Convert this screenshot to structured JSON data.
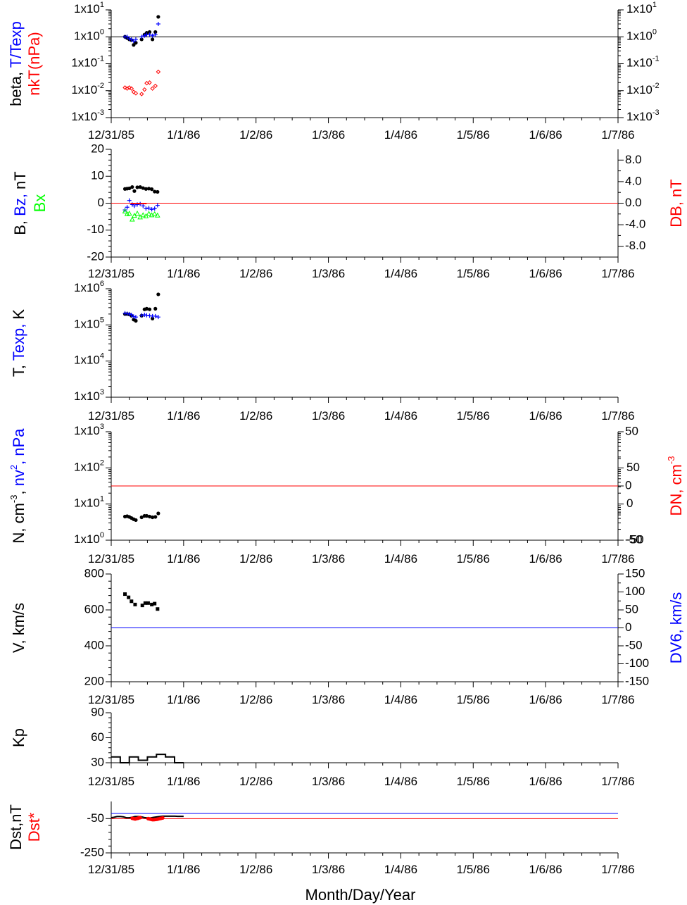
{
  "figure": {
    "x_tick_labels": [
      "12/31/85",
      "1/1/86",
      "1/2/86",
      "1/3/86",
      "1/4/86",
      "1/5/86",
      "1/6/86",
      "1/7/86"
    ],
    "x_axis_label": "Month/Day/Year",
    "colors": {
      "black": "#000000",
      "blue": "#0000ff",
      "red": "#ff0000",
      "green": "#00ff00"
    }
  },
  "chart_data": [
    {
      "id": "beta",
      "type": "scatter",
      "y_scale": "log",
      "ylim": [
        0.001,
        10
      ],
      "left_tick_labels": [
        {
          "base": "1x10",
          "exp": "-3"
        },
        {
          "base": "1x10",
          "exp": "-2"
        },
        {
          "base": "1x10",
          "exp": "-1"
        },
        {
          "base": "1x10",
          "exp": "0"
        },
        {
          "base": "1x10",
          "exp": "1"
        }
      ],
      "right_tick_labels": [
        {
          "base": "1x10",
          "exp": "-3"
        },
        {
          "base": "1x10",
          "exp": "-2"
        },
        {
          "base": "1x10",
          "exp": "-1"
        },
        {
          "base": "1x10",
          "exp": "0"
        },
        {
          "base": "1x10",
          "exp": "1"
        }
      ],
      "ylabel_left_lines": [
        [
          {
            "text": "beta, ",
            "color": "#000000"
          },
          {
            "text": "T/Texp",
            "color": "#0000ff"
          }
        ],
        [
          {
            "text": "nkT(nPa)",
            "color": "#ff0000"
          }
        ]
      ],
      "reference_lines": [
        {
          "y": 1,
          "color": "#000000"
        }
      ],
      "series": [
        {
          "color": "#000000",
          "marker": "dot",
          "x": [
            0.19,
            0.22,
            0.25,
            0.28,
            0.31,
            0.34,
            0.42,
            0.46,
            0.49,
            0.53,
            0.57,
            0.61,
            0.65
          ],
          "y": [
            1.0,
            0.9,
            0.8,
            0.75,
            0.5,
            0.6,
            0.8,
            1.2,
            1.4,
            1.5,
            0.8,
            1.5,
            5.5
          ]
        },
        {
          "color": "#0000ff",
          "marker": "plus",
          "x": [
            0.19,
            0.22,
            0.25,
            0.28,
            0.31,
            0.34,
            0.42,
            0.46,
            0.49,
            0.53,
            0.57,
            0.61,
            0.65
          ],
          "y": [
            1.0,
            1.0,
            0.85,
            0.8,
            0.7,
            0.8,
            1.0,
            1.1,
            1.2,
            1.2,
            1.1,
            1.2,
            3.0
          ]
        },
        {
          "color": "#ff0000",
          "marker": "diamond",
          "x": [
            0.19,
            0.22,
            0.25,
            0.28,
            0.31,
            0.34,
            0.42,
            0.46,
            0.49,
            0.53,
            0.57,
            0.61,
            0.65
          ],
          "y": [
            0.013,
            0.012,
            0.013,
            0.012,
            0.009,
            0.008,
            0.0075,
            0.011,
            0.019,
            0.02,
            0.012,
            0.015,
            0.05
          ]
        }
      ]
    },
    {
      "id": "bfield",
      "type": "scatter",
      "ylim": [
        -20,
        20
      ],
      "left_ticks": [
        -20,
        -10,
        0,
        10,
        20
      ],
      "right_ylim": [
        -10,
        10
      ],
      "right_ticks": [
        -8,
        -4,
        0,
        4,
        8
      ],
      "right_tick_labels": [
        "-8.0",
        "-4.0",
        "0.0",
        "4.0",
        "8.0"
      ],
      "ylabel_left_lines": [
        [
          {
            "text": "B, ",
            "color": "#000000"
          },
          {
            "text": "Bz, ",
            "color": "#0000ff"
          },
          {
            "text": "nT",
            "color": "#000000"
          }
        ],
        [
          {
            "text": "Bx",
            "color": "#00ff00"
          }
        ]
      ],
      "ylabel_right": [
        {
          "text": "DB, nT",
          "color": "#ff0000"
        }
      ],
      "reference_lines": [
        {
          "y": 0,
          "color": "#ff0000"
        }
      ],
      "series": [
        {
          "color": "#000000",
          "marker": "dot",
          "x": [
            0.19,
            0.22,
            0.25,
            0.29,
            0.32,
            0.36,
            0.4,
            0.44,
            0.48,
            0.52,
            0.56,
            0.6,
            0.64
          ],
          "y": [
            5.3,
            5.4,
            5.5,
            6.0,
            4.5,
            5.9,
            6.0,
            5.6,
            5.3,
            5.4,
            5.2,
            4.3,
            4.2
          ]
        },
        {
          "color": "#0000ff",
          "marker": "plus",
          "x": [
            0.19,
            0.22,
            0.25,
            0.29,
            0.32,
            0.36,
            0.4,
            0.44,
            0.48,
            0.52,
            0.56,
            0.6,
            0.64
          ],
          "y": [
            -2.5,
            -1.5,
            1.0,
            -0.5,
            -1.0,
            -0.5,
            -0.3,
            -1.0,
            -2.0,
            -1.8,
            -2.3,
            -2.0,
            -0.8
          ]
        },
        {
          "color": "#00ff00",
          "marker": "triangle",
          "x": [
            0.19,
            0.22,
            0.25,
            0.29,
            0.32,
            0.36,
            0.4,
            0.44,
            0.48,
            0.52,
            0.56,
            0.6,
            0.64
          ],
          "y": [
            -3.0,
            -4.0,
            -3.8,
            -6.0,
            -4.6,
            -3.8,
            -5.2,
            -4.4,
            -4.8,
            -3.9,
            -4.4,
            -4.0,
            -4.5
          ]
        },
        {
          "color": "#ff0000",
          "marker": "dash",
          "x": [
            0.3,
            0.34,
            0.38,
            0.42,
            0.46
          ],
          "y": [
            -0.2,
            -0.1,
            -0.2,
            -0.1,
            -0.2
          ]
        }
      ]
    },
    {
      "id": "temperature",
      "type": "scatter",
      "y_scale": "log",
      "ylim": [
        1000,
        1000000
      ],
      "left_tick_labels": [
        {
          "base": "1x10",
          "exp": "3"
        },
        {
          "base": "1x10",
          "exp": "4"
        },
        {
          "base": "1x10",
          "exp": "5"
        },
        {
          "base": "1x10",
          "exp": "6"
        }
      ],
      "ylabel_left_lines": [
        [
          {
            "text": "T, ",
            "color": "#000000"
          },
          {
            "text": "Texp, ",
            "color": "#0000ff"
          },
          {
            "text": "K",
            "color": "#000000"
          }
        ]
      ],
      "series": [
        {
          "color": "#000000",
          "marker": "dot",
          "x": [
            0.19,
            0.22,
            0.25,
            0.28,
            0.31,
            0.34,
            0.42,
            0.46,
            0.49,
            0.53,
            0.57,
            0.61,
            0.65
          ],
          "y": [
            200000,
            200000,
            195000,
            180000,
            140000,
            130000,
            180000,
            270000,
            280000,
            270000,
            150000,
            280000,
            700000
          ]
        },
        {
          "color": "#0000ff",
          "marker": "plus",
          "x": [
            0.19,
            0.22,
            0.25,
            0.28,
            0.31,
            0.34,
            0.42,
            0.46,
            0.49,
            0.53,
            0.57,
            0.61,
            0.65
          ],
          "y": [
            210000,
            205000,
            200000,
            190000,
            170000,
            165000,
            185000,
            190000,
            185000,
            180000,
            175000,
            175000,
            165000
          ]
        }
      ]
    },
    {
      "id": "density",
      "type": "scatter",
      "y_scale": "log",
      "ylim": [
        1,
        1000
      ],
      "left_tick_labels": [
        {
          "base": "1x10",
          "exp": "0"
        },
        {
          "base": "1x10",
          "exp": "1"
        },
        {
          "base": "1x10",
          "exp": "2"
        },
        {
          "base": "1x10",
          "exp": "3"
        }
      ],
      "right_ylim": [
        -50,
        50
      ],
      "right_ticks": [
        -50,
        0,
        50
      ],
      "right_tick_labels": [
        "-50",
        "0",
        "50"
      ],
      "ylabel_left_lines": [
        [
          {
            "text": "N, cm",
            "color": "#000000"
          },
          {
            "text": "-3",
            "color": "#000000",
            "sup": true
          },
          {
            "text": ", ",
            "color": "#000000"
          },
          {
            "text": "nv",
            "color": "#0000ff"
          },
          {
            "text": "2",
            "color": "#0000ff",
            "sup": true
          },
          {
            "text": ", nPa",
            "color": "#0000ff"
          }
        ]
      ],
      "ylabel_right": [
        {
          "text": "DN, cm",
          "color": "#ff0000"
        },
        {
          "text": "-3",
          "color": "#ff0000",
          "sup": true
        }
      ],
      "reference_lines": [
        {
          "y_right": 0,
          "color": "#ff0000"
        }
      ],
      "series": [
        {
          "color": "#000000",
          "marker": "dot",
          "x": [
            0.19,
            0.22,
            0.25,
            0.28,
            0.31,
            0.34,
            0.42,
            0.46,
            0.49,
            0.53,
            0.57,
            0.61,
            0.65
          ],
          "y": [
            4.5,
            4.6,
            4.4,
            4.1,
            3.8,
            3.6,
            4.3,
            4.7,
            4.7,
            4.5,
            4.3,
            4.4,
            5.5
          ]
        }
      ]
    },
    {
      "id": "velocity",
      "type": "scatter",
      "ylim": [
        200,
        800
      ],
      "left_ticks": [
        200,
        400,
        600,
        800
      ],
      "right_ylim": [
        -150,
        150
      ],
      "right_ticks": [
        -150,
        -100,
        -50,
        0,
        50,
        100,
        150
      ],
      "right_tick_labels": [
        "-150",
        "-100",
        "-50",
        "0",
        "50",
        "100",
        "150"
      ],
      "ylabel_left_lines": [
        [
          {
            "text": "V, km/s",
            "color": "#000000"
          }
        ]
      ],
      "ylabel_right": [
        {
          "text": "DV6, km/s",
          "color": "#0000ff"
        }
      ],
      "reference_lines": [
        {
          "y_right": 0,
          "color": "#0000ff"
        }
      ],
      "series": [
        {
          "color": "#000000",
          "marker": "square",
          "x": [
            0.19,
            0.24,
            0.28,
            0.33,
            0.43,
            0.47,
            0.51,
            0.56,
            0.6,
            0.64
          ],
          "y": [
            688,
            670,
            648,
            630,
            625,
            638,
            638,
            630,
            635,
            605
          ]
        }
      ]
    },
    {
      "id": "kp",
      "type": "line",
      "ylim": [
        30,
        90
      ],
      "left_ticks": [
        30,
        60,
        90
      ],
      "ylabel_left_lines": [
        [
          {
            "text": "Kp",
            "color": "#000000"
          }
        ]
      ],
      "series": [
        {
          "color": "#000000",
          "x": [
            0,
            0.125,
            0.125,
            0.25,
            0.25,
            0.375,
            0.375,
            0.5,
            0.5,
            0.625,
            0.625,
            0.75,
            0.75,
            0.875,
            0.875,
            1.0
          ],
          "y": [
            37,
            37,
            30,
            30,
            37,
            37,
            33,
            33,
            37,
            37,
            40,
            40,
            37,
            37,
            30,
            30
          ]
        }
      ]
    },
    {
      "id": "dst",
      "type": "line",
      "ylim": [
        -250,
        50
      ],
      "left_ticks": [
        -250,
        -50
      ],
      "ylabel_left_lines": [
        [
          {
            "text": "Dst,nT",
            "color": "#000000"
          }
        ],
        [
          {
            "text": "Dst*",
            "color": "#ff0000"
          }
        ]
      ],
      "reference_lines": [
        {
          "y": -20,
          "color": "#0000ff"
        },
        {
          "y": -50,
          "color": "#ff0000"
        }
      ],
      "series": [
        {
          "color": "#000000",
          "marker": "none",
          "x": [
            0,
            0.04,
            0.08,
            0.13,
            0.17,
            0.21,
            0.25,
            0.29,
            0.33,
            0.38,
            0.42,
            0.46,
            0.5,
            0.54,
            0.58,
            0.63,
            0.67,
            0.71,
            0.75,
            0.79,
            0.83,
            0.88,
            0.92,
            0.96,
            1.0
          ],
          "y": [
            -45,
            -42,
            -38,
            -38,
            -40,
            -45,
            -45,
            -42,
            -38,
            -38,
            -40,
            -44,
            -46,
            -46,
            -43,
            -40,
            -38,
            -36,
            -36,
            -36,
            -36,
            -36,
            -37,
            -37,
            -37
          ]
        },
        {
          "color": "#ff0000",
          "marker": "dot",
          "x": [
            0.29,
            0.31,
            0.33,
            0.35,
            0.37,
            0.38,
            0.4,
            0.51,
            0.53,
            0.55,
            0.57,
            0.59,
            0.61,
            0.63,
            0.65,
            0.67,
            0.69,
            0.71
          ],
          "y": [
            -48,
            -50,
            -52,
            -50,
            -48,
            -46,
            -44,
            -50,
            -52,
            -54,
            -56,
            -56,
            -55,
            -54,
            -52,
            -50,
            -48,
            -46
          ]
        }
      ]
    }
  ]
}
